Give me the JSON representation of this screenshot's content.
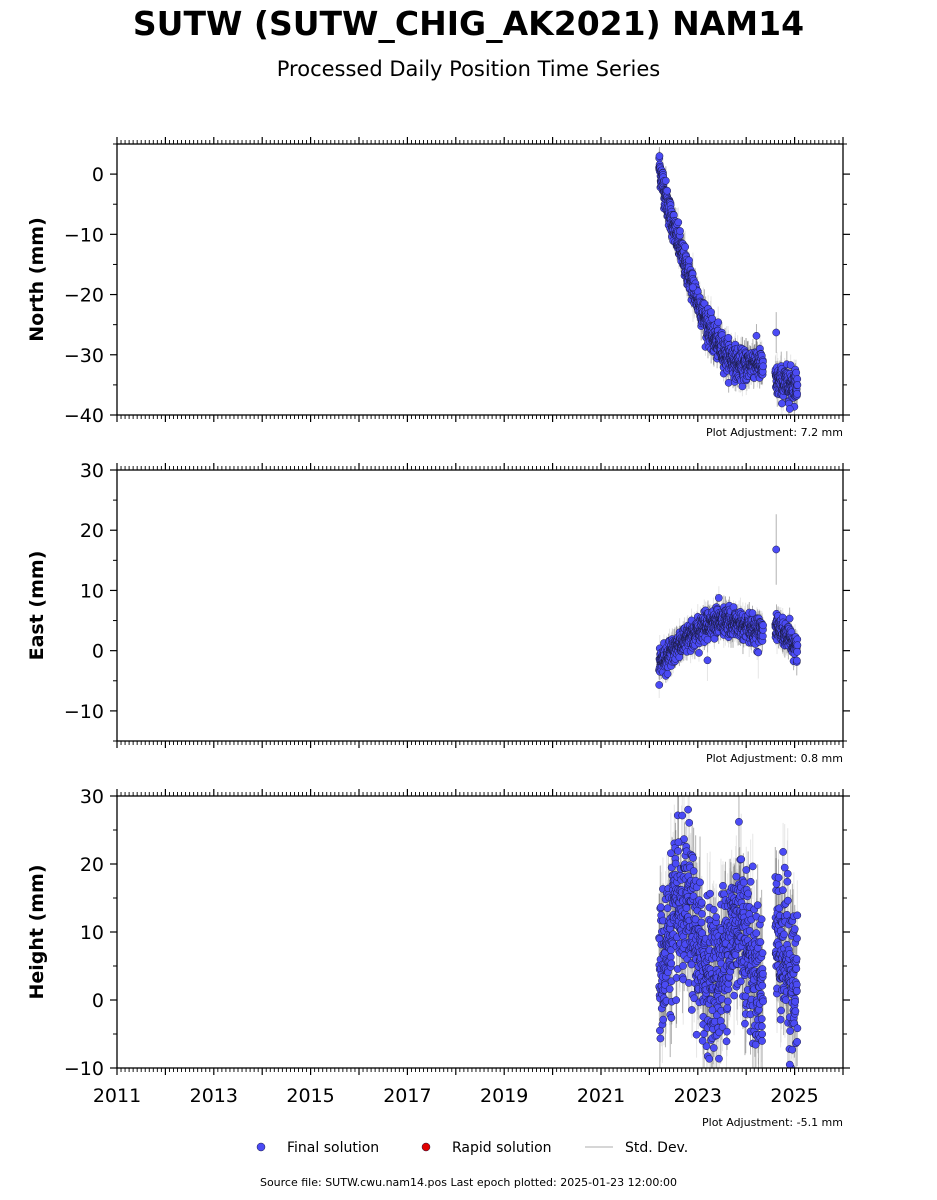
{
  "title": "SUTW (SUTW_CHIG_AK2021) NAM14",
  "subtitle": "Processed Daily Position Time Series",
  "source_text": "Source file: SUTW.cwu.nam14.pos  Last epoch plotted: 2025-01-23 12:00:00",
  "legend": [
    {
      "label": "Final solution",
      "marker": "circle",
      "color": "#4b4bf5"
    },
    {
      "label": "Rapid solution",
      "marker": "circle",
      "color": "#e00000"
    },
    {
      "label": "Std. Dev.",
      "marker": "line",
      "color": "#c8c8c8"
    }
  ],
  "colors": {
    "final": "#4b4bf5",
    "rapid": "#e00000",
    "std_dev": "#c8c8c8",
    "error_bar_dense": "#555555"
  },
  "chart_data": [
    {
      "type": "scatter",
      "ylabel": "North (mm)",
      "ylim": [
        -40,
        5
      ],
      "yticks": [
        0,
        -10,
        -20,
        -30,
        -40
      ],
      "ytick_labels": [
        "0",
        "−10",
        "−20",
        "−30",
        "−40"
      ],
      "xlim": [
        2011,
        2026
      ],
      "x_tick_labels_shown": false,
      "adjustment": "Plot Adjustment: 7.2 mm",
      "trend": [
        [
          2022.2,
          1.5
        ],
        [
          2022.4,
          -6
        ],
        [
          2022.7,
          -14
        ],
        [
          2023.0,
          -21
        ],
        [
          2023.3,
          -27
        ],
        [
          2023.6,
          -30
        ],
        [
          2023.9,
          -32
        ],
        [
          2024.2,
          -31
        ],
        [
          2024.6,
          -34.5
        ],
        [
          2025.06,
          -35
        ]
      ],
      "scatter_sd": 1.3,
      "std_dev": 1.8,
      "gap": [
        2024.35,
        2024.6
      ],
      "outliers": [
        [
          2024.62,
          -26.3
        ],
        [
          2022.9,
          -18.8
        ],
        [
          2024.9,
          -39
        ]
      ]
    },
    {
      "type": "scatter",
      "ylabel": "East (mm)",
      "ylim": [
        -15,
        30
      ],
      "yticks": [
        30,
        20,
        10,
        0,
        -10
      ],
      "ytick_labels": [
        "30",
        "20",
        "10",
        "0",
        "−10"
      ],
      "xlim": [
        2011,
        2026
      ],
      "x_tick_labels_shown": false,
      "adjustment": "Plot Adjustment: 0.8 mm",
      "trend": [
        [
          2022.2,
          -2
        ],
        [
          2022.5,
          0
        ],
        [
          2022.8,
          2.5
        ],
        [
          2023.0,
          3
        ],
        [
          2023.2,
          4.5
        ],
        [
          2023.5,
          5
        ],
        [
          2023.8,
          4.5
        ],
        [
          2024.1,
          3.5
        ],
        [
          2024.35,
          3.5
        ],
        [
          2024.6,
          4.5
        ],
        [
          2024.8,
          2.5
        ],
        [
          2025.06,
          0.5
        ]
      ],
      "scatter_sd": 1.1,
      "std_dev": 1.6,
      "gap": [
        2024.35,
        2024.6
      ],
      "outliers": [
        [
          2024.62,
          16.8
        ],
        [
          2023.2,
          -1.6
        ],
        [
          2024.25,
          -0.3
        ]
      ]
    },
    {
      "type": "scatter",
      "ylabel": "Height (mm)",
      "ylim": [
        -10,
        30
      ],
      "yticks": [
        30,
        20,
        10,
        0,
        -10
      ],
      "ytick_labels": [
        "30",
        "20",
        "10",
        "0",
        "−10"
      ],
      "xlim": [
        2011,
        2026
      ],
      "xticks": [
        2011,
        2013,
        2015,
        2017,
        2019,
        2021,
        2023,
        2025
      ],
      "xtick_labels": [
        "2011",
        "2013",
        "2015",
        "2017",
        "2019",
        "2021",
        "2023",
        "2025"
      ],
      "x_tick_labels_shown": true,
      "adjustment": "Plot Adjustment: -5.1 mm",
      "trend": [
        [
          2022.2,
          3
        ],
        [
          2022.5,
          12
        ],
        [
          2022.8,
          13
        ],
        [
          2023.1,
          5
        ],
        [
          2023.4,
          3
        ],
        [
          2023.7,
          10
        ],
        [
          2023.9,
          12
        ],
        [
          2024.2,
          3
        ],
        [
          2024.35,
          3
        ],
        [
          2024.6,
          10
        ],
        [
          2024.8,
          7
        ],
        [
          2025.06,
          1
        ]
      ],
      "scatter_sd": 5.2,
      "std_dev": 4.5,
      "gap": [
        2024.35,
        2024.6
      ],
      "outliers": [
        [
          2022.6,
          23.2
        ],
        [
          2022.8,
          28
        ],
        [
          2023.3,
          -1.5
        ],
        [
          2023.85,
          26.2
        ],
        [
          2024.9,
          -9.5
        ],
        [
          2023.1,
          -6
        ]
      ]
    }
  ]
}
